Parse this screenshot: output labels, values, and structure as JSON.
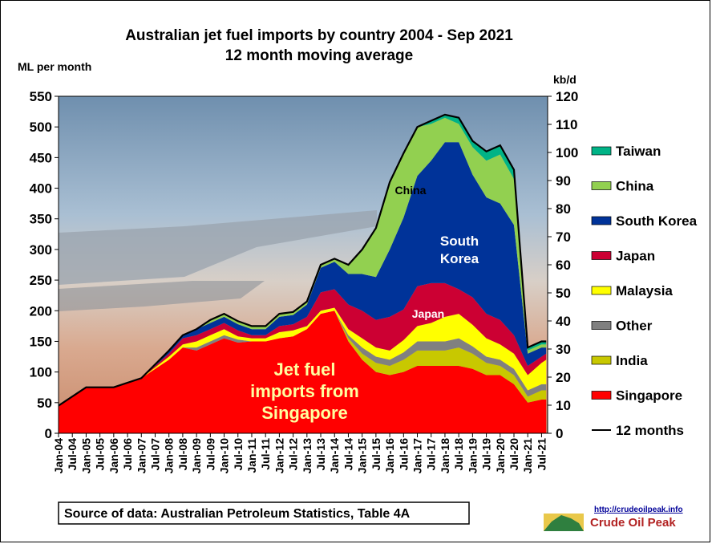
{
  "chart_data": {
    "type": "area",
    "title": "Australian  jet fuel  imports  by country  2004 - Sep 2021",
    "subtitle": "12 month  moving  average",
    "ylabel_left": "ML per month",
    "ylabel_right": "kb/d",
    "ylim_left": [
      0,
      550
    ],
    "ylim_right": [
      0,
      120
    ],
    "yticks_left": [
      "0",
      "50",
      "100",
      "150",
      "200",
      "250",
      "300",
      "350",
      "400",
      "450",
      "500",
      "550"
    ],
    "yticks_right": [
      "0",
      "10",
      "20",
      "30",
      "40",
      "50",
      "60",
      "70",
      "80",
      "90",
      "100",
      "110",
      "120"
    ],
    "stacked": true,
    "x": [
      "Jan-04",
      "Jan-05",
      "Jan-06",
      "Jan-07",
      "Jan-08",
      "Jul-08",
      "Jan-09",
      "Jul-09",
      "Jan-10",
      "Jul-10",
      "Jan-11",
      "Jul-11",
      "Jan-12",
      "Jul-12",
      "Jan-13",
      "Jul-13",
      "Jan-14",
      "Jul-14",
      "Jan-15",
      "Jul-15",
      "Jan-16",
      "Jul-16",
      "Jan-17",
      "Jul-17",
      "Jan-18",
      "Jul-18",
      "Jan-19",
      "Jul-19",
      "Jan-20",
      "Jul-20",
      "Jan-21",
      "Jul-21",
      "Sep-21"
    ],
    "xtick_labels": [
      "Jan-04",
      "Jul-04",
      "Jan-05",
      "Jul-05",
      "Jan-06",
      "Jul-06",
      "Jan-07",
      "Jul-07",
      "Jan-08",
      "Jul-08",
      "Jan-09",
      "Jul-09",
      "Jan-10",
      "Jul-10",
      "Jan-11",
      "Jul-11",
      "Jan-12",
      "Jul-12",
      "Jan-13",
      "Jul-13",
      "Jan-14",
      "Jul-14",
      "Jan-15",
      "Jul-15",
      "Jan-16",
      "Jul-16",
      "Jan-17",
      "Jul-17",
      "Jan-18",
      "Jul-18",
      "Jan-19",
      "Jul-19",
      "Jan-20",
      "Jul-20",
      "Jan-21",
      "Jul-21"
    ],
    "series": [
      {
        "name": "Singapore",
        "color": "#ff0000",
        "values": [
          45,
          75,
          75,
          90,
          120,
          140,
          135,
          145,
          155,
          148,
          150,
          150,
          155,
          158,
          170,
          195,
          200,
          150,
          120,
          100,
          95,
          100,
          110,
          110,
          110,
          110,
          105,
          95,
          95,
          80,
          50,
          55,
          55
        ]
      },
      {
        "name": "India",
        "color": "#c8c800",
        "values": [
          0,
          0,
          0,
          0,
          0,
          0,
          0,
          0,
          0,
          0,
          0,
          0,
          0,
          0,
          0,
          0,
          0,
          5,
          10,
          15,
          15,
          20,
          25,
          25,
          25,
          30,
          25,
          20,
          15,
          15,
          10,
          15,
          15
        ]
      },
      {
        "name": "Other",
        "color": "#808080",
        "values": [
          0,
          0,
          0,
          0,
          0,
          0,
          5,
          5,
          5,
          5,
          0,
          0,
          0,
          0,
          0,
          0,
          0,
          5,
          10,
          10,
          10,
          12,
          15,
          15,
          15,
          15,
          12,
          10,
          10,
          10,
          10,
          10,
          10
        ]
      },
      {
        "name": "Malaysia",
        "color": "#ffff00",
        "values": [
          0,
          0,
          0,
          0,
          5,
          5,
          10,
          10,
          10,
          5,
          5,
          5,
          10,
          10,
          5,
          5,
          5,
          10,
          15,
          15,
          15,
          20,
          25,
          30,
          40,
          40,
          35,
          30,
          25,
          25,
          25,
          35,
          40
        ]
      },
      {
        "name": "Japan",
        "color": "#cc0033",
        "values": [
          0,
          0,
          0,
          0,
          5,
          10,
          10,
          10,
          10,
          10,
          5,
          5,
          10,
          10,
          15,
          30,
          30,
          40,
          45,
          45,
          55,
          50,
          65,
          65,
          55,
          40,
          45,
          40,
          40,
          30,
          15,
          10,
          10
        ]
      },
      {
        "name": "South Korea",
        "color": "#003399",
        "values": [
          0,
          0,
          0,
          0,
          5,
          5,
          10,
          10,
          10,
          10,
          10,
          10,
          15,
          15,
          20,
          40,
          45,
          50,
          60,
          70,
          110,
          150,
          180,
          200,
          230,
          240,
          200,
          190,
          190,
          180,
          20,
          15,
          10
        ]
      },
      {
        "name": "China",
        "color": "#92d050",
        "values": [
          0,
          0,
          0,
          0,
          0,
          0,
          0,
          5,
          5,
          5,
          5,
          5,
          5,
          5,
          5,
          5,
          5,
          15,
          40,
          80,
          110,
          105,
          80,
          60,
          40,
          30,
          45,
          60,
          80,
          75,
          5,
          5,
          5
        ]
      },
      {
        "name": "Taiwan",
        "color": "#00b386",
        "values": [
          0,
          0,
          0,
          0,
          0,
          0,
          0,
          0,
          0,
          0,
          0,
          0,
          0,
          0,
          0,
          0,
          0,
          0,
          0,
          0,
          0,
          0,
          0,
          5,
          5,
          10,
          10,
          15,
          15,
          15,
          5,
          5,
          5
        ]
      }
    ],
    "total_line": {
      "name": "12 months",
      "color": "#000000"
    },
    "legend_order": [
      "Taiwan",
      "China",
      "South Korea",
      "Japan",
      "Malaysia",
      "Other",
      "India",
      "Singapore",
      "12 months"
    ],
    "legend_position": "right",
    "annotations": {
      "china": "China",
      "south_korea_line1": "South",
      "south_korea_line2": "Korea",
      "japan": "Japan",
      "singapore_line1": "Jet fuel",
      "singapore_line2": "imports from",
      "singapore_line3": "Singapore"
    },
    "source": "Source of data: Australian Petroleum Statistics, Table 4A",
    "logo": {
      "url": "http://crudeoilpeak.info",
      "name": "Crude Oil Peak"
    },
    "grid": false
  }
}
